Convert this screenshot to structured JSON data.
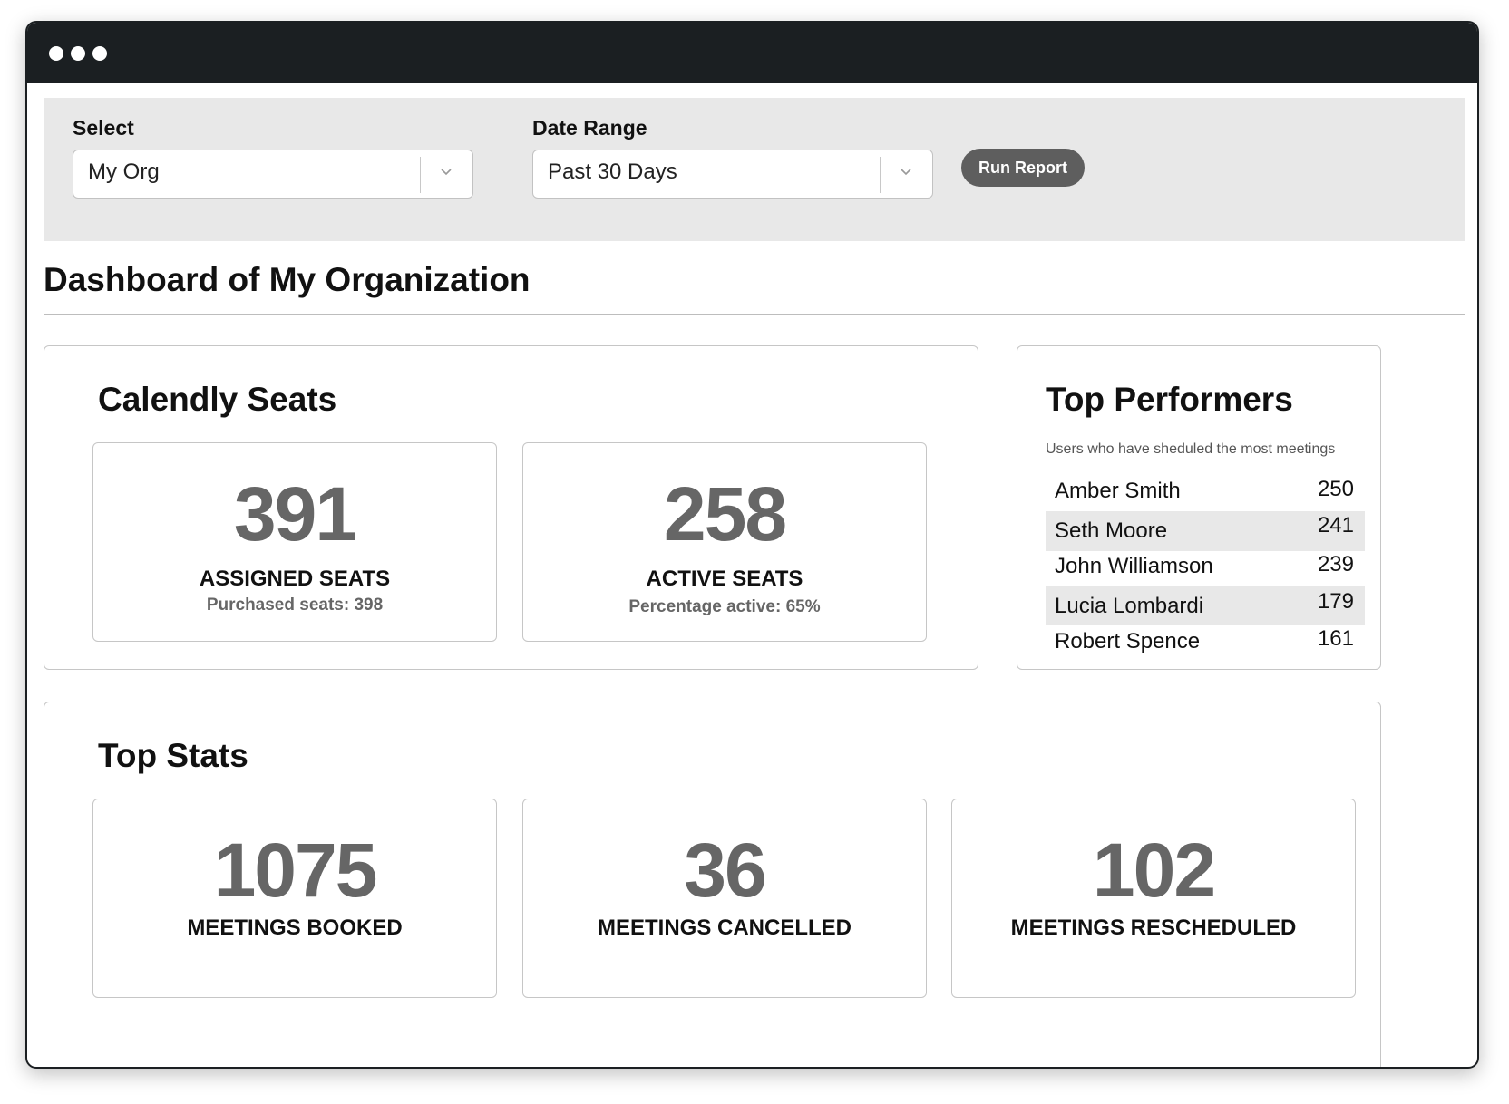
{
  "filters": {
    "select_label": "Select",
    "select_value": "My Org",
    "date_label": "Date Range",
    "date_value": "Past 30 Days",
    "run_button": "Run Report"
  },
  "page": {
    "title": "Dashboard of My Organization"
  },
  "seats": {
    "title": "Calendly Seats",
    "cards": [
      {
        "value": "391",
        "label": "ASSIGNED SEATS",
        "sub": "Purchased seats: 398"
      },
      {
        "value": "258",
        "label": "ACTIVE SEATS",
        "sub": "Percentage active: 65%"
      }
    ]
  },
  "top_performers": {
    "title": "Top Performers",
    "subtitle": "Users who have sheduled the most meetings",
    "rows": [
      {
        "name": "Amber Smith",
        "count": "250"
      },
      {
        "name": "Seth Moore",
        "count": "241"
      },
      {
        "name": "John Williamson",
        "count": "239"
      },
      {
        "name": "Lucia Lombardi",
        "count": "179"
      },
      {
        "name": "Robert Spence",
        "count": "161"
      }
    ]
  },
  "top_stats": {
    "title": "Top Stats",
    "cards": [
      {
        "value": "1075",
        "label": "MEETINGS BOOKED"
      },
      {
        "value": "36",
        "label": "MEETINGS CANCELLED"
      },
      {
        "value": "102",
        "label": "MEETINGS RESCHEDULED"
      }
    ]
  },
  "colors": {
    "titlebar": "#1b1f22",
    "toolbar_bg": "#e8e8e8",
    "button_bg": "#5e5e5e",
    "stat_number": "#666666"
  },
  "icons": [
    "window-dot-icon",
    "chevron-down-icon"
  ]
}
